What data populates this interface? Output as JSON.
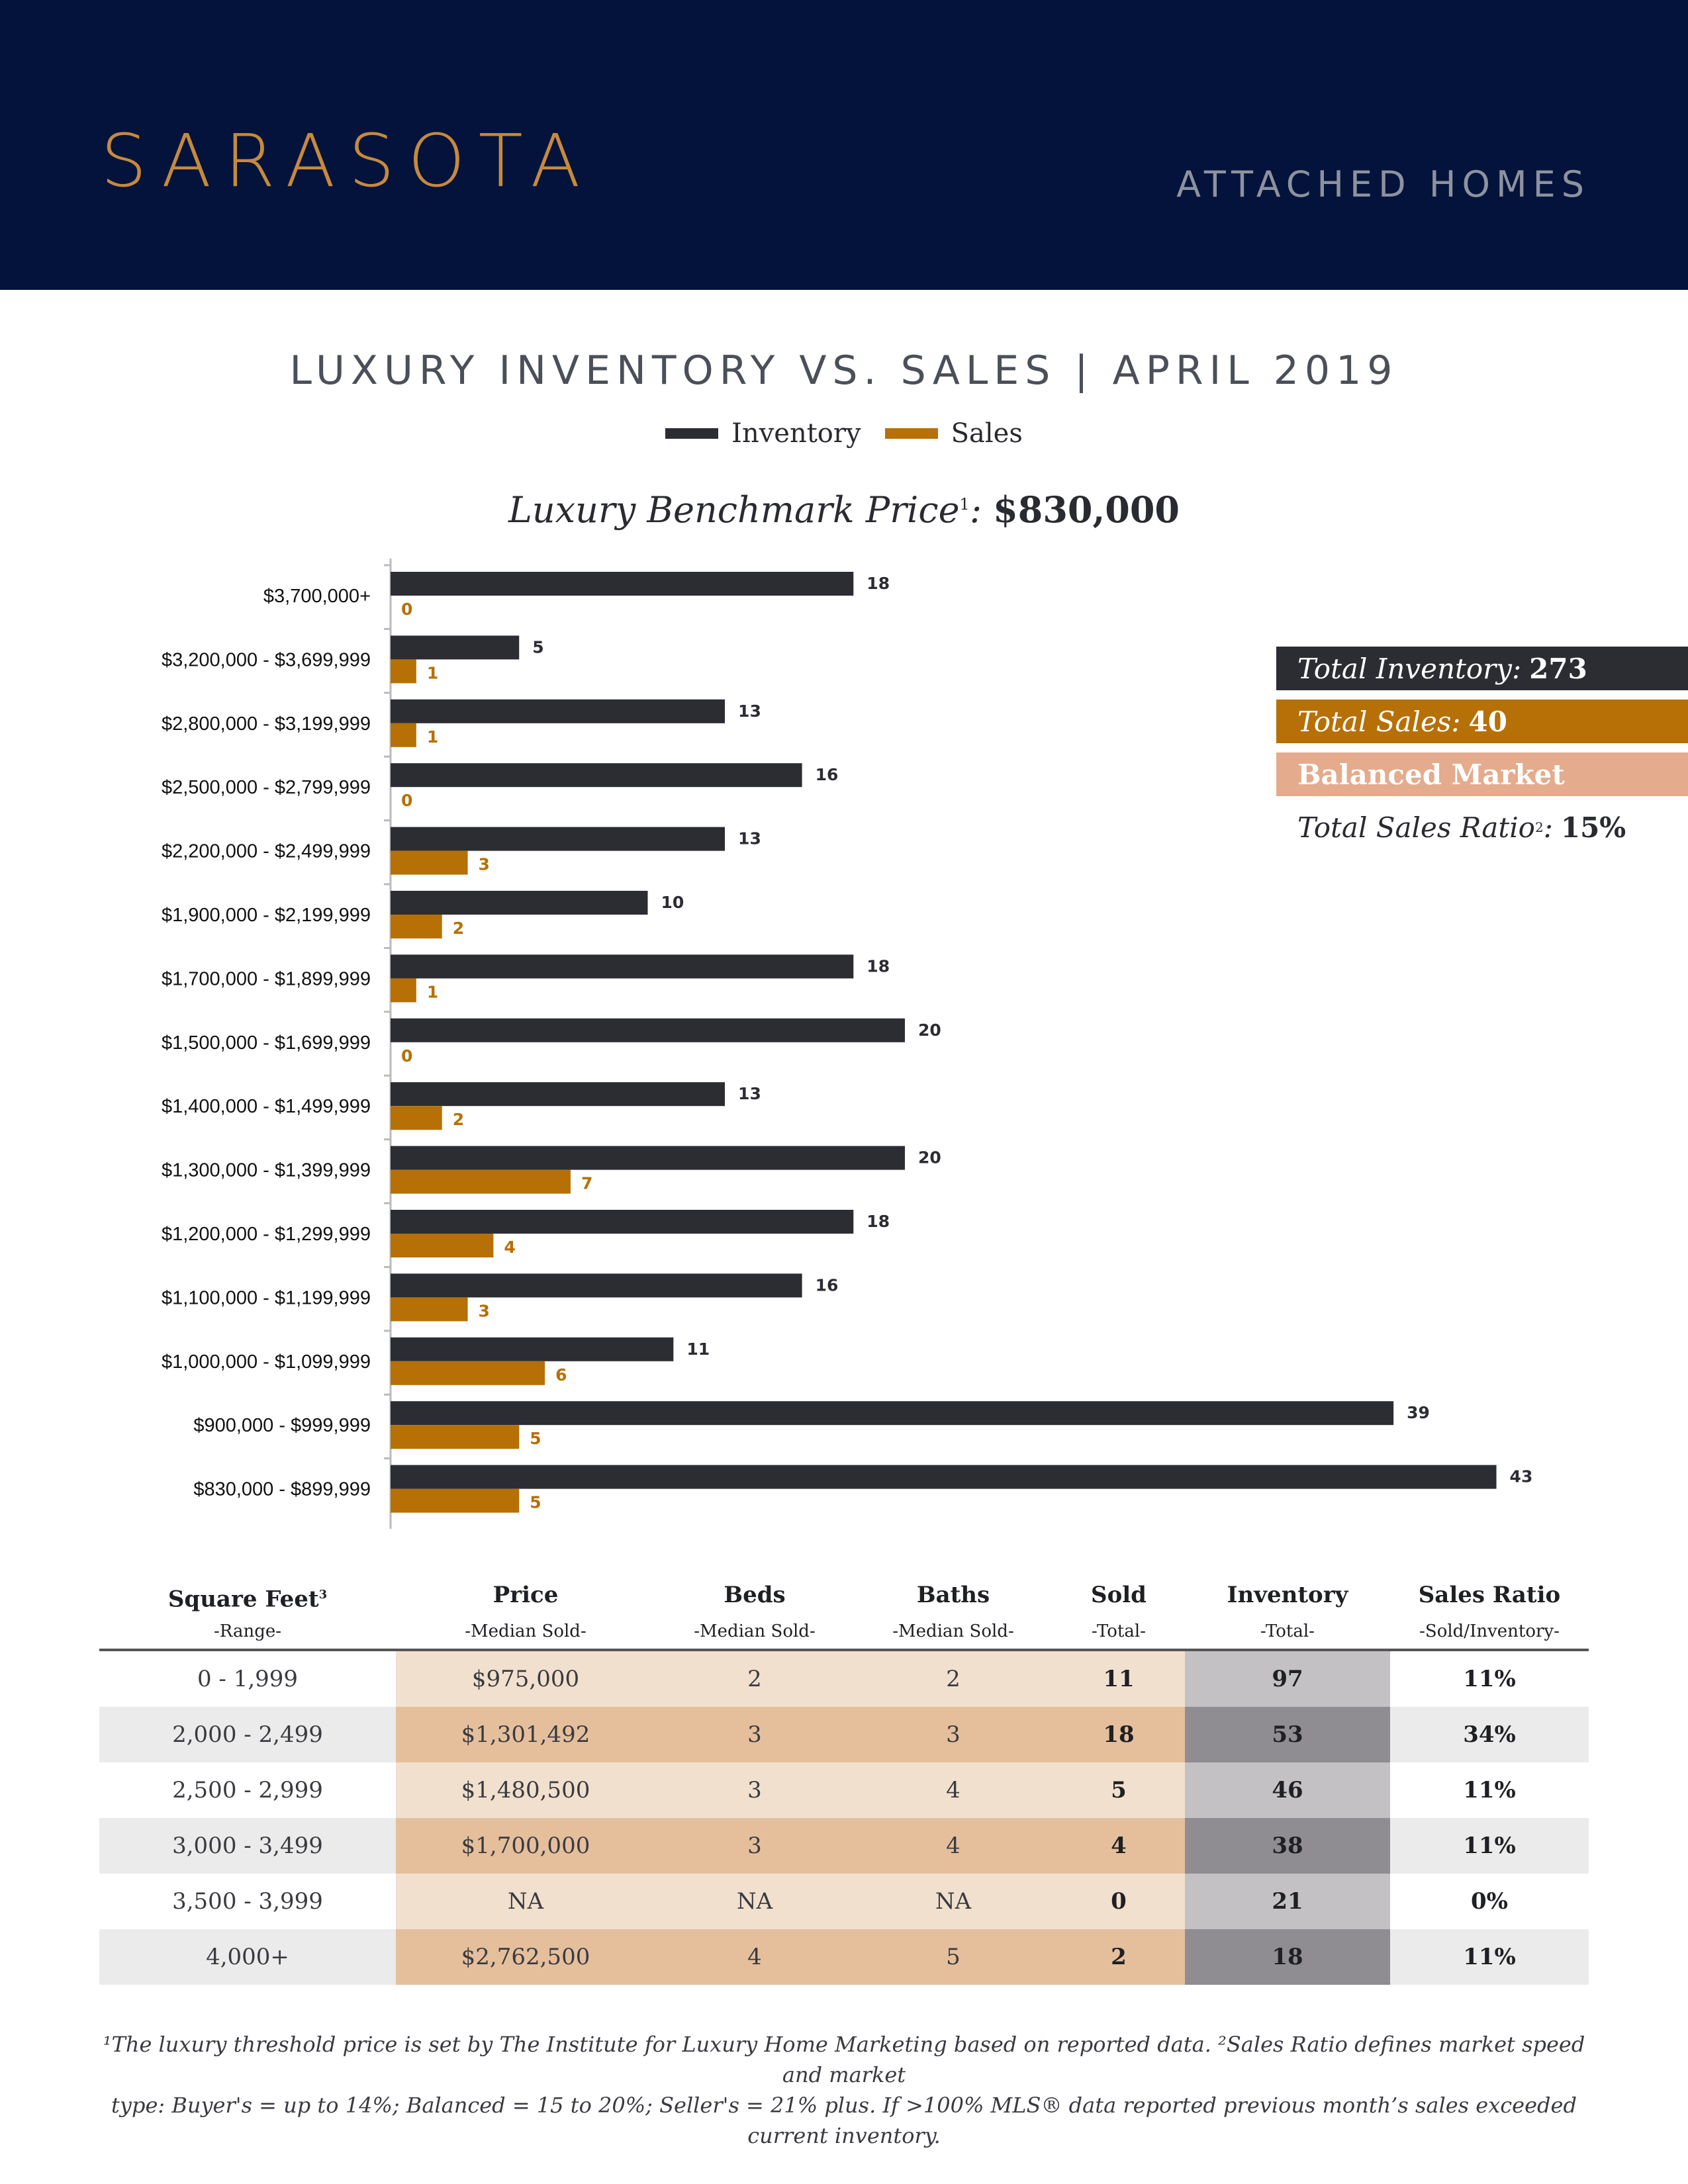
{
  "header": {
    "city": "SARASOTA",
    "segment": "ATTACHED HOMES"
  },
  "colors": {
    "inventory": "#2c2d33",
    "sales": "#b67006",
    "balanced": "#e4ab8c",
    "header_bg": "#03133b",
    "accent": "#c68a3d"
  },
  "chart_title": "LUXURY INVENTORY VS. SALES | APRIL 2019",
  "benchmark": {
    "label": "Luxury Benchmark Price",
    "sup": "1",
    "value": "$830,000"
  },
  "summary": {
    "inventory_label": "Total Inventory:",
    "inventory_value": "273",
    "sales_label": "Total Sales:",
    "sales_value": "40",
    "market": "Balanced Market",
    "ratio_label": "Total Sales Ratio",
    "ratio_sup": "2",
    "ratio_value": "15%"
  },
  "chart_data": {
    "type": "bar",
    "orientation": "horizontal",
    "title": "LUXURY INVENTORY VS. SALES | APRIL 2019",
    "legend_position": "top-center",
    "categories": [
      "$3,700,000+",
      "$3,200,000 - $3,699,999",
      "$2,800,000 - $3,199,999",
      "$2,500,000 - $2,799,999",
      "$2,200,000 - $2,499,999",
      "$1,900,000 - $2,199,999",
      "$1,700,000 - $1,899,999",
      "$1,500,000 - $1,699,999",
      "$1,400,000 - $1,499,999",
      "$1,300,000 - $1,399,999",
      "$1,200,000 - $1,299,999",
      "$1,100,000 - $1,199,999",
      "$1,000,000 - $1,099,999",
      "$900,000 - $999,999",
      "$830,000 - $899,999"
    ],
    "series": [
      {
        "name": "Inventory",
        "values": [
          18,
          5,
          13,
          16,
          13,
          10,
          18,
          20,
          13,
          20,
          18,
          16,
          11,
          39,
          43
        ]
      },
      {
        "name": "Sales",
        "values": [
          0,
          1,
          1,
          0,
          3,
          2,
          1,
          0,
          2,
          7,
          4,
          3,
          6,
          5,
          5
        ]
      }
    ],
    "xlim": [
      0,
      43
    ],
    "grid": false
  },
  "table": {
    "columns": [
      {
        "title": "Square Feet",
        "sup": "3",
        "sub": "-Range-"
      },
      {
        "title": "Price",
        "sup": "",
        "sub": "-Median Sold-"
      },
      {
        "title": "Beds",
        "sup": "",
        "sub": "-Median Sold-"
      },
      {
        "title": "Baths",
        "sup": "",
        "sub": "-Median Sold-"
      },
      {
        "title": "Sold",
        "sup": "",
        "sub": "-Total-"
      },
      {
        "title": "Inventory",
        "sup": "",
        "sub": "-Total-"
      },
      {
        "title": "Sales Ratio",
        "sup": "",
        "sub": "-Sold/Inventory-"
      }
    ],
    "rows": [
      [
        "0 - 1,999",
        "$975,000",
        "2",
        "2",
        "11",
        "97",
        "11%"
      ],
      [
        "2,000 - 2,499",
        "$1,301,492",
        "3",
        "3",
        "18",
        "53",
        "34%"
      ],
      [
        "2,500 - 2,999",
        "$1,480,500",
        "3",
        "4",
        "5",
        "46",
        "11%"
      ],
      [
        "3,000 - 3,499",
        "$1,700,000",
        "3",
        "4",
        "4",
        "38",
        "11%"
      ],
      [
        "3,500 - 3,999",
        "NA",
        "NA",
        "NA",
        "0",
        "21",
        "0%"
      ],
      [
        "4,000+",
        "$2,762,500",
        "4",
        "5",
        "2",
        "18",
        "11%"
      ]
    ]
  },
  "footnote": {
    "line1": "¹The luxury threshold price is set by The Institute for Luxury Home Marketing based on reported data. ²Sales Ratio defines market speed and market",
    "line2": "type: Buyer's = up to 14%; Balanced = 15 to 20%; Seller's = 21% plus. If >100% MLS® data reported previous month’s sales exceeded current inventory."
  }
}
